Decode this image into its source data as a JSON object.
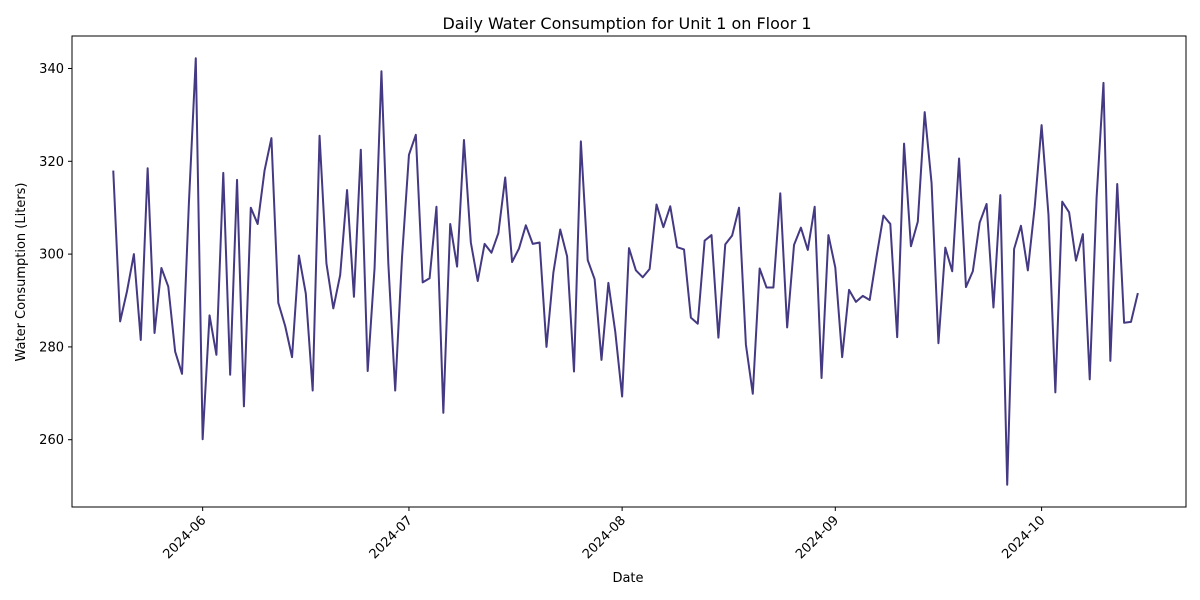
{
  "chart_data": {
    "type": "line",
    "title": "Daily Water Consumption for Unit 1 on Floor 1",
    "xlabel": "Date",
    "ylabel": "Water Consumption (Liters)",
    "x_tick_labels": [
      "2024-06",
      "2024-07",
      "2024-08",
      "2024-09",
      "2024-10"
    ],
    "x_tick_dates": [
      "2024-06-01",
      "2024-07-01",
      "2024-08-01",
      "2024-09-01",
      "2024-10-01"
    ],
    "y_ticks": [
      260,
      280,
      300,
      320,
      340
    ],
    "xlim": [
      "2024-05-13",
      "2024-10-22"
    ],
    "ylim": [
      245.5,
      347
    ],
    "grid": false,
    "line_color": "#443983",
    "series": [
      {
        "x_start": "2024-05-19",
        "values": [
          318,
          285.5,
          292,
          300,
          281.5,
          318.5,
          283,
          297,
          293,
          279,
          274.2,
          311,
          342.2,
          260.1,
          286.8,
          278.3,
          317.5,
          274,
          316,
          267.2,
          310,
          306.5,
          318,
          325,
          289.5,
          284.5,
          277.8,
          299.7,
          291.5,
          270.6,
          325.5,
          298,
          288.3,
          295.5,
          313.8,
          290.8,
          322.5,
          274.8,
          297,
          339.4,
          298,
          270.6,
          299.5,
          321.4,
          325.7,
          293.9,
          294.8,
          310.2,
          265.8,
          306.5,
          297.3,
          324.6,
          302.5,
          294.2,
          302.2,
          300.3,
          304.5,
          316.5,
          298.3,
          301.2,
          306.2,
          302.2,
          302.5,
          280,
          296,
          305.3,
          299.5,
          274.7,
          324.3,
          298.7,
          294.6,
          277.2,
          293.8,
          283.3,
          269.3,
          301.3,
          296.5,
          295,
          296.8,
          310.7,
          305.8,
          310.3,
          301.5,
          301,
          286.3,
          285,
          302.9,
          304.1,
          282,
          302.1,
          304,
          310,
          280.5,
          269.9,
          296.9,
          292.8,
          292.8,
          313.1,
          284.2,
          302,
          305.7,
          300.9,
          310.2,
          273.3,
          304.1,
          297.1,
          277.8,
          292.3,
          289.7,
          291,
          290.1,
          299.5,
          308.3,
          306.5,
          282.1,
          323.8,
          301.7,
          307,
          330.6,
          315.3,
          280.8,
          301.4,
          296.3,
          320.6,
          292.9,
          296.3,
          306.8,
          310.8,
          288.5,
          312.7,
          250.3,
          301.1,
          306.1,
          296.5,
          310.2,
          327.8,
          308.5,
          270.2,
          311.3,
          309,
          298.6,
          304.3,
          273,
          312.2,
          336.9,
          277,
          315.1,
          285.2,
          285.4,
          291.6
        ]
      }
    ]
  }
}
